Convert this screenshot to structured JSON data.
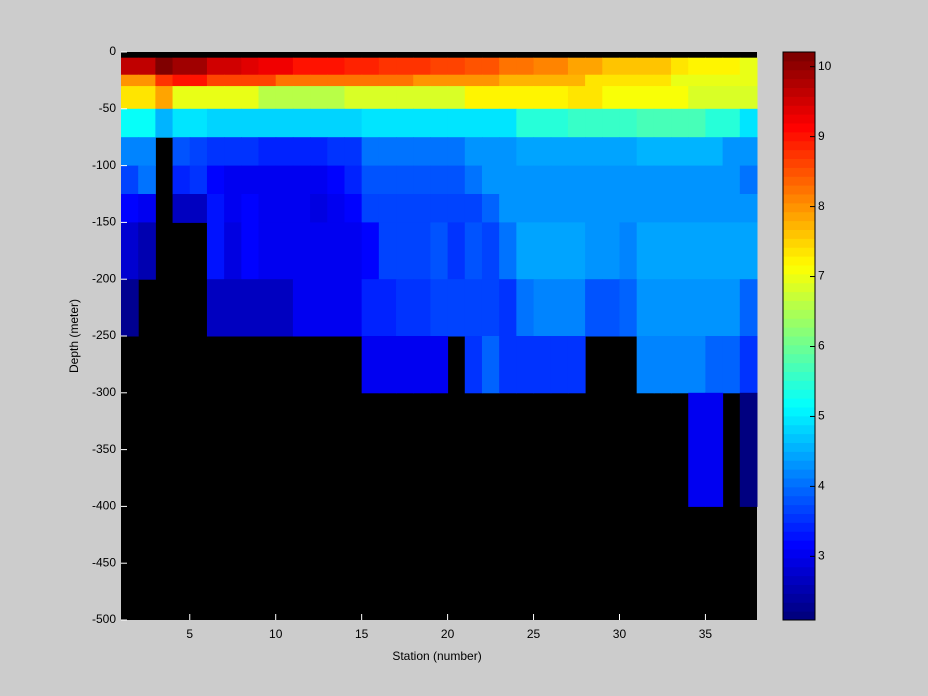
{
  "chart_data": {
    "type": "heatmap",
    "xlabel": "Station (number)",
    "ylabel": "Depth (meter)",
    "x_edges": [
      1,
      2,
      3,
      4,
      5,
      6,
      7,
      8,
      9,
      10,
      11,
      12,
      13,
      14,
      15,
      16,
      17,
      18,
      19,
      20,
      21,
      22,
      23,
      24,
      25,
      26,
      27,
      28,
      29,
      30,
      31,
      32,
      33,
      34,
      35,
      36,
      37,
      38
    ],
    "y_edges": [
      0,
      -5,
      -20,
      -30,
      -50,
      -75,
      -100,
      -125,
      -150,
      -200,
      -250,
      -300,
      -400,
      -500
    ],
    "values": [
      [
        null,
        null,
        null,
        null,
        null,
        null,
        null,
        null,
        null,
        null,
        null,
        null,
        null,
        null,
        null,
        null,
        null,
        null,
        null,
        null,
        null,
        null,
        null,
        null,
        null,
        null,
        null,
        null,
        null,
        null,
        null,
        null,
        null,
        null,
        null,
        null,
        null
      ],
      [
        9.7,
        9.7,
        10.1,
        9.9,
        9.9,
        9.5,
        9.5,
        9.4,
        9.3,
        9.2,
        9.0,
        9.0,
        9.0,
        8.9,
        8.9,
        8.8,
        8.8,
        8.8,
        8.6,
        8.6,
        8.5,
        8.5,
        8.3,
        8.3,
        8.1,
        8.1,
        7.8,
        7.8,
        7.6,
        7.6,
        7.6,
        7.6,
        7.4,
        7.2,
        7.2,
        7.2,
        7.0
      ],
      [
        8.0,
        8.0,
        8.8,
        9.0,
        9.0,
        8.6,
        8.6,
        8.6,
        8.6,
        8.3,
        8.3,
        8.3,
        8.3,
        8.2,
        8.2,
        8.2,
        8.2,
        8.0,
        8.0,
        8.0,
        8.0,
        8.0,
        7.7,
        7.7,
        7.7,
        7.7,
        7.7,
        7.3,
        7.3,
        7.3,
        7.3,
        7.3,
        7.0,
        7.0,
        7.0,
        7.0,
        7.0
      ],
      [
        7.4,
        7.4,
        7.8,
        7.0,
        7.0,
        7.0,
        7.0,
        7.0,
        6.6,
        6.6,
        6.6,
        6.6,
        6.6,
        6.9,
        6.9,
        6.9,
        6.9,
        6.9,
        6.9,
        6.9,
        7.2,
        7.2,
        7.2,
        7.2,
        7.2,
        7.2,
        7.4,
        7.4,
        7.1,
        7.1,
        7.1,
        7.1,
        7.1,
        6.8,
        6.8,
        6.8,
        6.8
      ],
      [
        5.2,
        5.2,
        4.6,
        4.9,
        4.9,
        4.8,
        4.8,
        4.8,
        4.8,
        4.8,
        4.8,
        4.8,
        4.8,
        4.8,
        4.9,
        4.9,
        4.9,
        4.9,
        4.9,
        4.9,
        5.0,
        5.0,
        5.0,
        5.4,
        5.4,
        5.4,
        5.6,
        5.6,
        5.6,
        5.6,
        5.7,
        5.7,
        5.7,
        5.7,
        5.4,
        5.4,
        5.0
      ],
      [
        4.2,
        4.2,
        null,
        3.8,
        3.7,
        3.6,
        3.6,
        3.6,
        3.4,
        3.4,
        3.4,
        3.4,
        3.6,
        3.6,
        4.1,
        4.1,
        4.1,
        4.1,
        4.1,
        4.1,
        4.3,
        4.3,
        4.3,
        4.4,
        4.4,
        4.4,
        4.5,
        4.5,
        4.5,
        4.5,
        4.6,
        4.6,
        4.6,
        4.6,
        4.6,
        4.3,
        4.3
      ],
      [
        3.7,
        4.0,
        null,
        3.4,
        3.6,
        3.2,
        3.1,
        3.1,
        3.1,
        3.1,
        3.1,
        3.1,
        3.2,
        3.4,
        3.8,
        3.8,
        3.8,
        3.8,
        3.8,
        3.8,
        4.1,
        4.3,
        4.3,
        4.3,
        4.3,
        4.3,
        4.3,
        4.3,
        4.3,
        4.3,
        4.3,
        4.3,
        4.3,
        4.3,
        4.3,
        4.3,
        4.0
      ],
      [
        3.2,
        3.0,
        null,
        2.6,
        2.6,
        3.3,
        3.0,
        3.2,
        3.1,
        3.1,
        3.1,
        2.9,
        3.0,
        3.2,
        3.7,
        3.7,
        3.7,
        3.7,
        3.7,
        3.7,
        3.7,
        3.9,
        4.3,
        4.3,
        4.3,
        4.3,
        4.3,
        4.3,
        4.3,
        4.3,
        4.3,
        4.3,
        4.3,
        4.3,
        4.3,
        4.3,
        4.3
      ],
      [
        2.8,
        2.5,
        null,
        null,
        null,
        3.3,
        2.9,
        3.2,
        3.0,
        3.0,
        3.0,
        3.0,
        3.0,
        3.0,
        3.2,
        3.7,
        3.7,
        3.7,
        3.8,
        3.5,
        3.8,
        3.7,
        4.0,
        4.5,
        4.5,
        4.5,
        4.5,
        4.3,
        4.3,
        4.2,
        4.5,
        4.5,
        4.4,
        4.4,
        4.4,
        4.4,
        4.4
      ],
      [
        2.3,
        null,
        null,
        null,
        null,
        2.7,
        2.7,
        2.7,
        2.7,
        2.7,
        3.1,
        3.1,
        3.1,
        3.1,
        3.4,
        3.4,
        3.5,
        3.5,
        3.7,
        3.7,
        3.7,
        3.7,
        3.6,
        4.1,
        4.2,
        4.2,
        4.2,
        3.8,
        3.8,
        3.9,
        4.3,
        4.3,
        4.3,
        4.3,
        4.3,
        4.3,
        3.9
      ],
      [
        null,
        null,
        null,
        null,
        null,
        null,
        null,
        null,
        null,
        null,
        null,
        null,
        null,
        null,
        3.1,
        3.1,
        3.1,
        3.1,
        3.1,
        null,
        3.5,
        3.9,
        3.5,
        3.5,
        3.5,
        3.5,
        3.5,
        null,
        null,
        null,
        4.2,
        4.2,
        4.2,
        4.2,
        3.9,
        3.9,
        3.6
      ],
      [
        null,
        null,
        null,
        null,
        null,
        null,
        null,
        null,
        null,
        null,
        null,
        null,
        null,
        null,
        null,
        null,
        null,
        null,
        null,
        null,
        null,
        null,
        null,
        null,
        null,
        null,
        null,
        null,
        null,
        null,
        null,
        null,
        null,
        3.1,
        3.1,
        null,
        2.2
      ],
      [
        null,
        null,
        null,
        null,
        null,
        null,
        null,
        null,
        null,
        null,
        null,
        null,
        null,
        null,
        null,
        null,
        null,
        null,
        null,
        null,
        null,
        null,
        null,
        null,
        null,
        null,
        null,
        null,
        null,
        null,
        null,
        null,
        null,
        null,
        null,
        null,
        null
      ]
    ],
    "colormap": "jet",
    "nan_color": "#000000",
    "xlim": [
      1,
      38
    ],
    "ylim": [
      -500,
      0
    ],
    "xticks": [
      5,
      10,
      15,
      20,
      25,
      30,
      35
    ],
    "yticks": [
      0,
      -50,
      -100,
      -150,
      -200,
      -250,
      -300,
      -350,
      -400,
      -450,
      -500
    ],
    "clim": [
      2.09,
      10.21
    ],
    "colorbar_ticks": [
      3,
      4,
      5,
      6,
      7,
      8,
      9,
      10
    ]
  }
}
